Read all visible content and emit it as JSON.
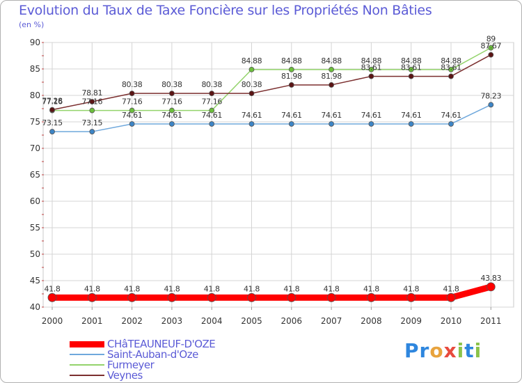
{
  "title": "Evolution du Taux de Taxe Foncière sur les Propriétés Non Bâties",
  "unit_label": "(en %)",
  "logo": {
    "text": "Proxiti",
    "letters": [
      "P",
      "r",
      "o",
      "x",
      "i",
      "t",
      "i"
    ],
    "colors": [
      "#2e86de",
      "#2e86de",
      "#e8a33d",
      "#e84a3d",
      "#8bc34a",
      "#2e86de",
      "#8bc34a"
    ]
  },
  "chart_data": {
    "type": "line",
    "title": "Evolution du Taux de Taxe Foncière sur les Propriétés Non Bâties",
    "xlabel": "",
    "ylabel": "(en %)",
    "ylim": [
      40,
      90
    ],
    "yticks": [
      40,
      45,
      50,
      55,
      60,
      65,
      70,
      75,
      80,
      85,
      90
    ],
    "x": [
      "2000",
      "2001",
      "2002",
      "2003",
      "2004",
      "2005",
      "2006",
      "2007",
      "2008",
      "2009",
      "2010",
      "2011"
    ],
    "grid": true,
    "legend_position": "bottom-left",
    "series": [
      {
        "name": "CHâTEAUNEUF-D'OZE",
        "color": "#ff0000",
        "marker": "#ff0000",
        "thick": true,
        "values": [
          41.8,
          41.8,
          41.8,
          41.8,
          41.8,
          41.8,
          41.8,
          41.8,
          41.8,
          41.8,
          41.8,
          43.83
        ],
        "labels": [
          "41.8",
          "41.8",
          "41.8",
          "41.8",
          "41.8",
          "41.8",
          "41.8",
          "41.8",
          "41.8",
          "41.8",
          "41.8",
          "43.83"
        ]
      },
      {
        "name": "Saint-Auban-d'Oze",
        "color": "#6fa8dc",
        "marker": "#3d85c6",
        "thick": false,
        "values": [
          73.15,
          73.15,
          74.61,
          74.61,
          74.61,
          74.61,
          74.61,
          74.61,
          74.61,
          74.61,
          74.61,
          78.23
        ],
        "labels": [
          "73.15",
          "73.15",
          "74.61",
          "74.61",
          "74.61",
          "74.61",
          "74.61",
          "74.61",
          "74.61",
          "74.61",
          "74.61",
          "78.23"
        ]
      },
      {
        "name": "Furmeyer",
        "color": "#93d36b",
        "marker": "#6cbf3c",
        "thick": false,
        "values": [
          77.16,
          77.16,
          77.16,
          77.16,
          77.16,
          84.88,
          84.88,
          84.88,
          84.88,
          84.88,
          84.88,
          89
        ],
        "labels": [
          "77.16",
          "77.16",
          "77.16",
          "77.16",
          "77.16",
          "84.88",
          "84.88",
          "84.88",
          "84.88",
          "84.88",
          "84.88",
          "89"
        ]
      },
      {
        "name": "Veynes",
        "color": "#7b2f2f",
        "marker": "#5b1414",
        "thick": false,
        "values": [
          77.28,
          78.81,
          80.38,
          80.38,
          80.38,
          80.38,
          81.98,
          81.98,
          83.61,
          83.61,
          83.61,
          87.67
        ],
        "labels": [
          "77.28",
          "78.81",
          "80.38",
          "80.38",
          "80.38",
          "80.38",
          "81.98",
          "81.98",
          "83.61",
          "83.61",
          "83.61",
          "87.67"
        ]
      }
    ]
  }
}
